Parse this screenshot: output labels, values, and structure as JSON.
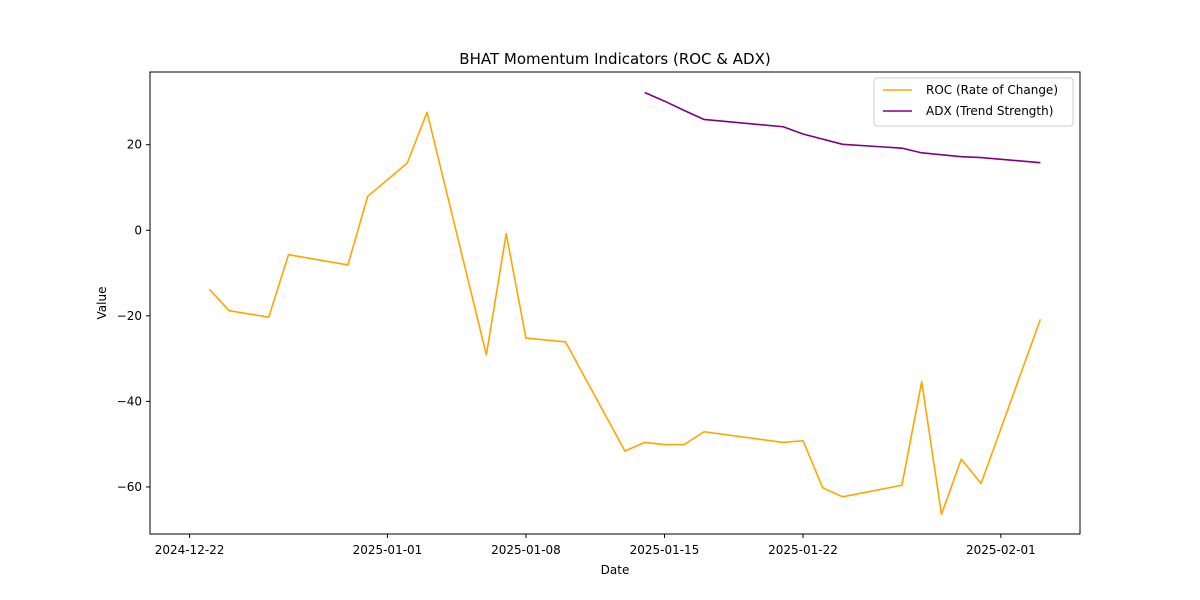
{
  "chart_data": {
    "type": "line",
    "title": "BHAT Momentum Indicators (ROC & ADX)",
    "xlabel": "Date",
    "ylabel": "Value",
    "xlim": [
      "2024-12-20",
      "2025-02-05"
    ],
    "ylim": [
      -71,
      37
    ],
    "x_ticks": [
      "2024-12-22",
      "2025-01-01",
      "2025-01-08",
      "2025-01-15",
      "2025-01-22",
      "2025-02-01"
    ],
    "y_ticks": [
      -60,
      -40,
      -20,
      0,
      20
    ],
    "grid": false,
    "legend_position": "top-right",
    "series": [
      {
        "name": "ROC (Rate of Change)",
        "color": "#ffa500",
        "points": [
          {
            "x": "2024-12-23",
            "y": -13.8
          },
          {
            "x": "2024-12-24",
            "y": -18.8
          },
          {
            "x": "2024-12-26",
            "y": -20.3
          },
          {
            "x": "2024-12-27",
            "y": -5.7
          },
          {
            "x": "2024-12-30",
            "y": -8.1
          },
          {
            "x": "2024-12-31",
            "y": 7.9
          },
          {
            "x": "2025-01-02",
            "y": 15.7
          },
          {
            "x": "2025-01-03",
            "y": 27.6
          },
          {
            "x": "2025-01-06",
            "y": -29.1
          },
          {
            "x": "2025-01-07",
            "y": -0.8
          },
          {
            "x": "2025-01-08",
            "y": -25.2
          },
          {
            "x": "2025-01-10",
            "y": -26.1
          },
          {
            "x": "2025-01-13",
            "y": -51.6
          },
          {
            "x": "2025-01-14",
            "y": -49.6
          },
          {
            "x": "2025-01-15",
            "y": -50.1
          },
          {
            "x": "2025-01-16",
            "y": -50.1
          },
          {
            "x": "2025-01-17",
            "y": -47.1
          },
          {
            "x": "2025-01-21",
            "y": -49.6
          },
          {
            "x": "2025-01-22",
            "y": -49.2
          },
          {
            "x": "2025-01-23",
            "y": -60.2
          },
          {
            "x": "2025-01-24",
            "y": -62.3
          },
          {
            "x": "2025-01-27",
            "y": -59.6
          },
          {
            "x": "2025-01-28",
            "y": -35.4
          },
          {
            "x": "2025-01-29",
            "y": -66.4
          },
          {
            "x": "2025-01-30",
            "y": -53.5
          },
          {
            "x": "2025-01-31",
            "y": -59.2
          },
          {
            "x": "2025-02-03",
            "y": -20.8
          }
        ]
      },
      {
        "name": "ADX (Trend Strength)",
        "color": "#800080",
        "points": [
          {
            "x": "2025-01-14",
            "y": 32.2
          },
          {
            "x": "2025-01-15",
            "y": 30.2
          },
          {
            "x": "2025-01-16",
            "y": 28.0
          },
          {
            "x": "2025-01-17",
            "y": 25.9
          },
          {
            "x": "2025-01-21",
            "y": 24.2
          },
          {
            "x": "2025-01-22",
            "y": 22.5
          },
          {
            "x": "2025-01-24",
            "y": 20.1
          },
          {
            "x": "2025-01-27",
            "y": 19.2
          },
          {
            "x": "2025-01-28",
            "y": 18.1
          },
          {
            "x": "2025-01-30",
            "y": 17.2
          },
          {
            "x": "2025-01-31",
            "y": 17.0
          },
          {
            "x": "2025-02-03",
            "y": 15.8
          }
        ]
      }
    ]
  }
}
